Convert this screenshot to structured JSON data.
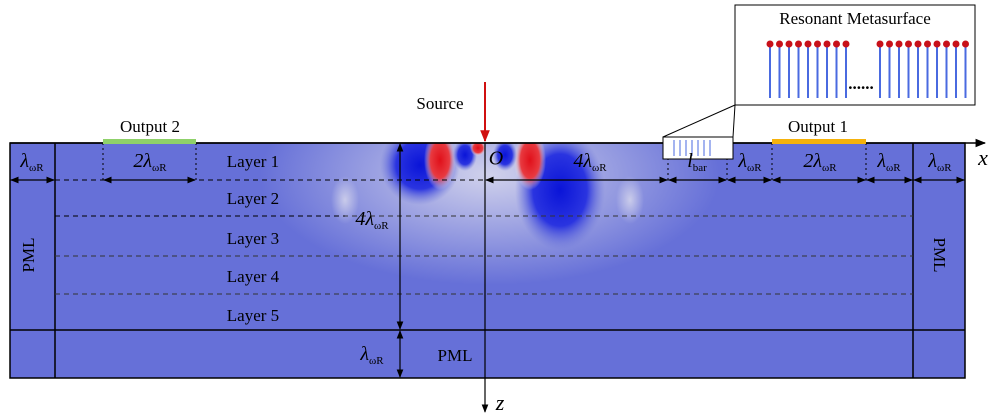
{
  "inset_title": "Resonant Metasurface",
  "ellipsis": "......",
  "source": "Source",
  "outputs": [
    "Output 2",
    "Output 1"
  ],
  "origin": "O",
  "x_axis": "x",
  "z_axis": "z",
  "layers": [
    "Layer 1",
    "Layer 2",
    "Layer 3",
    "Layer 4",
    "Layer 5"
  ],
  "pml": [
    "PML",
    "PML",
    "PML"
  ],
  "dimensions": [
    {
      "main": "λ",
      "sub": "ωR"
    },
    {
      "main": "2λ",
      "sub": "ωR"
    },
    {
      "main": "4λ",
      "sub": "ωR"
    },
    {
      "main": "l",
      "sub": "bar"
    },
    {
      "main": "λ",
      "sub": "ωR"
    },
    {
      "main": "2λ",
      "sub": "ωR"
    },
    {
      "main": "λ",
      "sub": "ωR"
    },
    {
      "main": "λ",
      "sub": "ωR"
    },
    {
      "main": "4λ",
      "sub": "ωR"
    },
    {
      "main": "λ",
      "sub": "ωR"
    }
  ]
}
